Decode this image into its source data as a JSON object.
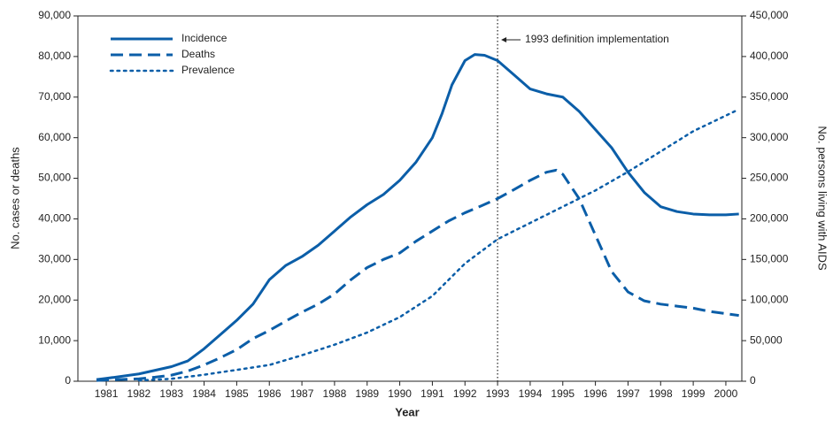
{
  "chart_data": {
    "type": "line",
    "x_label": "Year",
    "y_label": "No. cases or deaths",
    "y2_label": "No. persons living with AIDS",
    "xlim": [
      1980.13,
      2000.49
    ],
    "xticks": [
      1981,
      1982,
      1983,
      1984,
      1985,
      1986,
      1987,
      1988,
      1989,
      1990,
      1991,
      1992,
      1993,
      1994,
      1995,
      1996,
      1997,
      1998,
      1999,
      2000
    ],
    "ylim": [
      0,
      90000
    ],
    "yticks": [
      0,
      {
        "value": 10000,
        "label": "10,000"
      },
      {
        "value": 20000,
        "label": "20,000"
      },
      {
        "value": 30000,
        "label": "30,000"
      },
      {
        "value": 40000,
        "label": "40,000"
      },
      {
        "value": 50000,
        "label": "50,000"
      },
      {
        "value": 60000,
        "label": "60,000"
      },
      {
        "value": 70000,
        "label": "70,000"
      },
      {
        "value": 80000,
        "label": "80,000"
      },
      {
        "value": 90000,
        "label": "90,000"
      }
    ],
    "y2lim": [
      0,
      450000
    ],
    "y2ticks": [
      0,
      {
        "value": 50000,
        "label": "50,000"
      },
      {
        "value": 100000,
        "label": "100,000"
      },
      {
        "value": 150000,
        "label": "150,000"
      },
      {
        "value": 200000,
        "label": "200,000"
      },
      {
        "value": 250000,
        "label": "250,000"
      },
      {
        "value": 300000,
        "label": "300,000"
      },
      {
        "value": 350000,
        "label": "350,000"
      },
      {
        "value": 400000,
        "label": "400,000"
      },
      {
        "value": 450000,
        "label": "450,000"
      }
    ],
    "legend": "upper-left",
    "annotation": {
      "text": "1993 definition implementation",
      "x": 1993
    },
    "series": [
      {
        "name": "Incidence",
        "color": "#0b5ea8",
        "style": "solid",
        "x": [
          1980.7,
          1981,
          1982,
          1983,
          1983.5,
          1984,
          1984.5,
          1985,
          1985.5,
          1986,
          1986.5,
          1987,
          1987.5,
          1988,
          1988.5,
          1989,
          1989.5,
          1990,
          1990.5,
          1991,
          1991.3,
          1991.6,
          1992,
          1992.3,
          1992.6,
          1993,
          1993.5,
          1994,
          1994.5,
          1995,
          1995.5,
          1996,
          1996.5,
          1997,
          1997.5,
          1998,
          1998.5,
          1999,
          1999.5,
          2000,
          2000.4
        ],
        "values": [
          400,
          700,
          1800,
          3600,
          5000,
          8000,
          11500,
          15000,
          19000,
          25000,
          28500,
          30700,
          33500,
          37000,
          40500,
          43500,
          46000,
          49500,
          54000,
          60000,
          66000,
          73000,
          79000,
          80500,
          80300,
          79000,
          75500,
          72000,
          70800,
          70000,
          66500,
          62000,
          57500,
          51500,
          46500,
          43000,
          41800,
          41200,
          41000,
          41000,
          41200
        ]
      },
      {
        "name": "Deaths",
        "color": "#0b5ea8",
        "style": "dashed",
        "x": [
          1980.7,
          1981,
          1982,
          1982.5,
          1983,
          1983.5,
          1984,
          1984.5,
          1985,
          1985.5,
          1986,
          1986.5,
          1987,
          1987.5,
          1988,
          1988.5,
          1989,
          1989.5,
          1990,
          1990.5,
          1991,
          1991.5,
          1992,
          1992.5,
          1993,
          1993.5,
          1994,
          1994.5,
          1994.8,
          1995,
          1995.5,
          1996,
          1996.5,
          1997,
          1997.5,
          1998,
          1998.5,
          1999,
          1999.5,
          2000.4
        ],
        "values": [
          200,
          300,
          600,
          1000,
          1500,
          2500,
          4000,
          5800,
          7800,
          10500,
          12500,
          14800,
          17000,
          19000,
          21500,
          25000,
          28000,
          30000,
          31600,
          34500,
          37000,
          39500,
          41500,
          43200,
          45000,
          47200,
          49500,
          51500,
          52000,
          51000,
          45000,
          36000,
          27000,
          22000,
          19800,
          19000,
          18500,
          18000,
          17200,
          16200
        ]
      },
      {
        "name": "Prevalence",
        "color": "#0b5ea8",
        "style": "dotted",
        "axis": "y2",
        "x": [
          1982,
          1983,
          1984,
          1985,
          1986,
          1987,
          1988,
          1989,
          1990,
          1991,
          1992,
          1993,
          1994,
          1995,
          1996,
          1997,
          1998,
          1999,
          2000.3
        ],
        "values": [
          1000,
          3000,
          8000,
          14000,
          20000,
          32000,
          45000,
          60000,
          79000,
          105000,
          145000,
          175000,
          195000,
          215000,
          235000,
          258000,
          283000,
          308000,
          333000
        ]
      }
    ]
  }
}
